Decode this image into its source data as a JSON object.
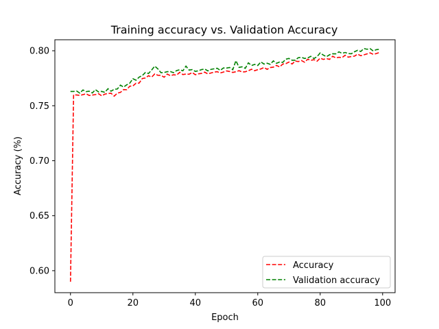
{
  "chart_data": {
    "type": "line",
    "title": "Training accuracy vs. Validation Accuracy",
    "xlabel": "Epoch",
    "ylabel": "Accuracy (%)",
    "xlim": [
      -5,
      104
    ],
    "ylim": [
      0.58,
      0.81
    ],
    "xticks": [
      0,
      20,
      40,
      60,
      80,
      100
    ],
    "yticks": [
      0.6,
      0.65,
      0.7,
      0.75,
      0.8
    ],
    "ytick_labels": [
      "0.60",
      "0.65",
      "0.70",
      "0.75",
      "0.80"
    ],
    "grid": false,
    "legend_position": "lower-right",
    "series": [
      {
        "name": "Accuracy",
        "color": "#ff0000",
        "dash": "dashed",
        "anchors": [
          [
            0,
            0.59
          ],
          [
            1,
            0.76
          ],
          [
            5,
            0.76
          ],
          [
            10,
            0.76
          ],
          [
            12,
            0.761
          ],
          [
            14,
            0.76
          ],
          [
            16,
            0.762
          ],
          [
            18,
            0.766
          ],
          [
            20,
            0.768
          ],
          [
            22,
            0.772
          ],
          [
            25,
            0.777
          ],
          [
            28,
            0.778
          ],
          [
            30,
            0.777
          ],
          [
            35,
            0.779
          ],
          [
            40,
            0.779
          ],
          [
            45,
            0.78
          ],
          [
            50,
            0.781
          ],
          [
            55,
            0.781
          ],
          [
            60,
            0.783
          ],
          [
            65,
            0.785
          ],
          [
            70,
            0.789
          ],
          [
            75,
            0.791
          ],
          [
            80,
            0.792
          ],
          [
            85,
            0.794
          ],
          [
            90,
            0.795
          ],
          [
            95,
            0.797
          ],
          [
            99,
            0.798
          ]
        ],
        "amp": 0.0015,
        "spikes": []
      },
      {
        "name": "Validation accuracy",
        "color": "#008000",
        "dash": "dashed",
        "anchors": [
          [
            0,
            0.763
          ],
          [
            5,
            0.763
          ],
          [
            10,
            0.763
          ],
          [
            13,
            0.764
          ],
          [
            15,
            0.766
          ],
          [
            18,
            0.769
          ],
          [
            20,
            0.773
          ],
          [
            22,
            0.776
          ],
          [
            24,
            0.779
          ],
          [
            27,
            0.784
          ],
          [
            30,
            0.78
          ],
          [
            35,
            0.782
          ],
          [
            40,
            0.782
          ],
          [
            45,
            0.783
          ],
          [
            50,
            0.784
          ],
          [
            55,
            0.785
          ],
          [
            60,
            0.788
          ],
          [
            65,
            0.789
          ],
          [
            70,
            0.791
          ],
          [
            75,
            0.793
          ],
          [
            80,
            0.795
          ],
          [
            85,
            0.797
          ],
          [
            90,
            0.798
          ],
          [
            94,
            0.801
          ],
          [
            99,
            0.801
          ]
        ],
        "amp": 0.0018,
        "spikes": [
          [
            27,
            0.786
          ],
          [
            37,
            0.786
          ],
          [
            53,
            0.791
          ],
          [
            57,
            0.789
          ],
          [
            70,
            0.793
          ],
          [
            74,
            0.794
          ],
          [
            80,
            0.798
          ],
          [
            86,
            0.799
          ],
          [
            94,
            0.802
          ],
          [
            98,
            0.801
          ]
        ]
      }
    ]
  }
}
